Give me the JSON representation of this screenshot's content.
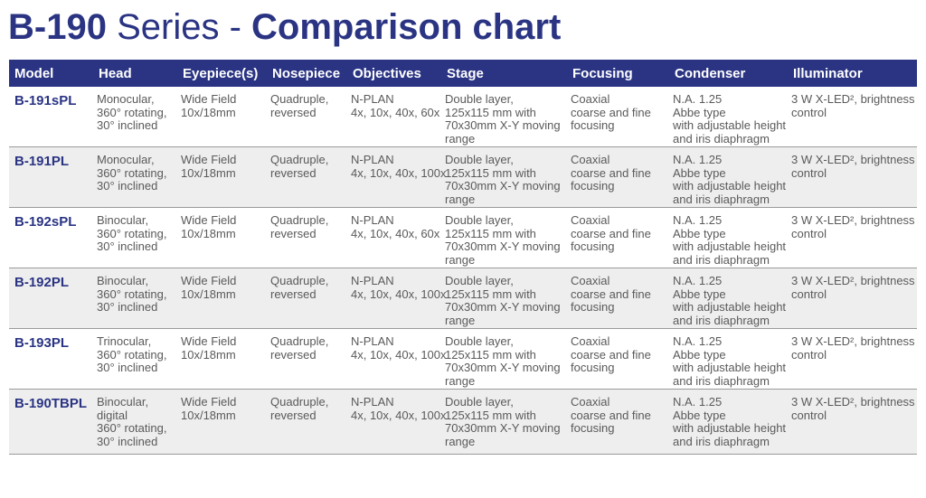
{
  "title": {
    "model": "B-190",
    "series": "Series -",
    "subtitle": "Comparison chart"
  },
  "table": {
    "headers": [
      "Model",
      "Head",
      "Eyepiece(s)",
      "Nosepiece",
      "Objectives",
      "Stage",
      "Focusing",
      "Condenser",
      "Illuminator"
    ],
    "rows": [
      {
        "model": "B-191sPL",
        "head": [
          "Monocular,",
          "360° rotating,",
          "30° inclined"
        ],
        "eyepiece": [
          "Wide Field",
          "10x/18mm"
        ],
        "nosepiece": [
          "Quadruple,",
          "reversed"
        ],
        "objectives": [
          "N-PLAN",
          "4x, 10x, 40x, 60x"
        ],
        "stage": [
          "Double layer,",
          "125x115 mm with",
          "70x30mm X-Y moving",
          "range"
        ],
        "focusing": [
          "Coaxial",
          "coarse and fine",
          "focusing"
        ],
        "condenser": [
          "N.A. 1.25",
          "Abbe type",
          "with adjustable height",
          "and iris diaphragm"
        ],
        "illuminator": [
          "3 W X-LED², brightness",
          "control"
        ]
      },
      {
        "model": "B-191PL",
        "head": [
          "Monocular,",
          "360° rotating,",
          "30° inclined"
        ],
        "eyepiece": [
          "Wide Field",
          "10x/18mm"
        ],
        "nosepiece": [
          "Quadruple,",
          "reversed"
        ],
        "objectives": [
          "N-PLAN",
          "4x, 10x, 40x, 100x"
        ],
        "stage": [
          "Double layer,",
          "125x115 mm with",
          "70x30mm X-Y moving",
          "range"
        ],
        "focusing": [
          "Coaxial",
          "coarse and fine",
          "focusing"
        ],
        "condenser": [
          "N.A. 1.25",
          "Abbe type",
          "with adjustable height",
          "and iris diaphragm"
        ],
        "illuminator": [
          "3 W X-LED², brightness",
          "control"
        ]
      },
      {
        "model": "B-192sPL",
        "head": [
          "Binocular,",
          "360° rotating,",
          "30° inclined"
        ],
        "eyepiece": [
          "Wide Field",
          "10x/18mm"
        ],
        "nosepiece": [
          "Quadruple,",
          "reversed"
        ],
        "objectives": [
          "N-PLAN",
          "4x, 10x, 40x, 60x"
        ],
        "stage": [
          "Double layer,",
          "125x115 mm with",
          "70x30mm X-Y moving",
          "range"
        ],
        "focusing": [
          "Coaxial",
          "coarse and fine",
          "focusing"
        ],
        "condenser": [
          "N.A. 1.25",
          "Abbe type",
          "with adjustable height",
          "and iris diaphragm"
        ],
        "illuminator": [
          "3 W X-LED², brightness",
          "control"
        ]
      },
      {
        "model": "B-192PL",
        "head": [
          "Binocular,",
          "360° rotating,",
          "30° inclined"
        ],
        "eyepiece": [
          "Wide Field",
          "10x/18mm"
        ],
        "nosepiece": [
          "Quadruple,",
          "reversed"
        ],
        "objectives": [
          "N-PLAN",
          "4x, 10x, 40x, 100x"
        ],
        "stage": [
          "Double layer,",
          "125x115 mm with",
          "70x30mm X-Y moving",
          "range"
        ],
        "focusing": [
          "Coaxial",
          "coarse and fine",
          "focusing"
        ],
        "condenser": [
          "N.A. 1.25",
          "Abbe type",
          "with adjustable height",
          "and iris diaphragm"
        ],
        "illuminator": [
          "3 W X-LED², brightness",
          "control"
        ]
      },
      {
        "model": "B-193PL",
        "head": [
          "Trinocular,",
          "360° rotating,",
          "30° inclined"
        ],
        "eyepiece": [
          "Wide Field",
          "10x/18mm"
        ],
        "nosepiece": [
          "Quadruple,",
          "reversed"
        ],
        "objectives": [
          "N-PLAN",
          "4x, 10x, 40x, 100x"
        ],
        "stage": [
          "Double layer,",
          "125x115 mm with",
          "70x30mm X-Y moving",
          "range"
        ],
        "focusing": [
          "Coaxial",
          "coarse and fine",
          "focusing"
        ],
        "condenser": [
          "N.A. 1.25",
          "Abbe type",
          "with adjustable height",
          "and iris diaphragm"
        ],
        "illuminator": [
          "3 W X-LED², brightness",
          "control"
        ]
      },
      {
        "model": "B-190TBPL",
        "head": [
          "Binocular,",
          "digital",
          "360° rotating,",
          "30° inclined"
        ],
        "eyepiece": [
          "Wide Field",
          "10x/18mm"
        ],
        "nosepiece": [
          "Quadruple,",
          "reversed"
        ],
        "objectives": [
          "N-PLAN",
          "4x, 10x, 40x, 100x"
        ],
        "stage": [
          "Double layer,",
          "125x115 mm with",
          "70x30mm X-Y moving",
          "range"
        ],
        "focusing": [
          "Coaxial",
          "coarse and fine",
          "focusing"
        ],
        "condenser": [
          "N.A. 1.25",
          "Abbe type",
          "with adjustable height",
          "and iris diaphragm"
        ],
        "illuminator": [
          "3 W X-LED², brightness",
          "control"
        ]
      }
    ]
  },
  "colors": {
    "brand": "#2a3483",
    "row_shade": "#eeeeee",
    "text": "#5a5a5a"
  }
}
